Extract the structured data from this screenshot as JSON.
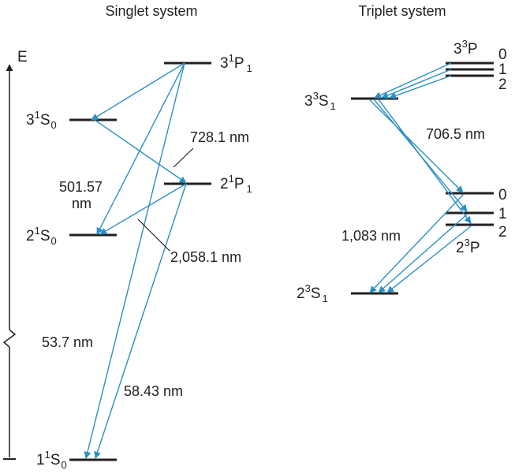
{
  "titles": {
    "singlet": "Singlet system",
    "triplet": "Triplet system"
  },
  "axis": {
    "label": "E"
  },
  "singlet_levels": {
    "s1_0": {
      "pre": "1",
      "sup": "1",
      "letter": "S",
      "sub": "0"
    },
    "s2_0": {
      "pre": "2",
      "sup": "1",
      "letter": "S",
      "sub": "0"
    },
    "s3_0": {
      "pre": "3",
      "sup": "1",
      "letter": "S",
      "sub": "0"
    },
    "p2_1": {
      "pre": "2",
      "sup": "1",
      "letter": "P",
      "sub": "1"
    },
    "p3_1": {
      "pre": "3",
      "sup": "1",
      "letter": "P",
      "sub": "1"
    }
  },
  "triplet_levels": {
    "s2_1": {
      "pre": "2",
      "sup": "3",
      "letter": "S",
      "sub": "1"
    },
    "s3_1": {
      "pre": "3",
      "sup": "3",
      "letter": "S",
      "sub": "1"
    },
    "p2": {
      "pre": "2",
      "sup": "3",
      "letter": "P",
      "j": [
        "0",
        "1",
        "2"
      ]
    },
    "p3": {
      "pre": "3",
      "sup": "3",
      "letter": "P",
      "j": [
        "0",
        "1",
        "2"
      ]
    }
  },
  "wavelengths": {
    "w728": "728.1 nm",
    "w501a": "501.57",
    "w501b": "nm",
    "w2058": "2,058.1 nm",
    "w537": "53.7 nm",
    "w5843": "58.43 nm",
    "w7065": "706.5 nm",
    "w1083": "1,083 nm"
  },
  "colors": {
    "arrow": "#2b8fc4",
    "level": "#231f20"
  }
}
